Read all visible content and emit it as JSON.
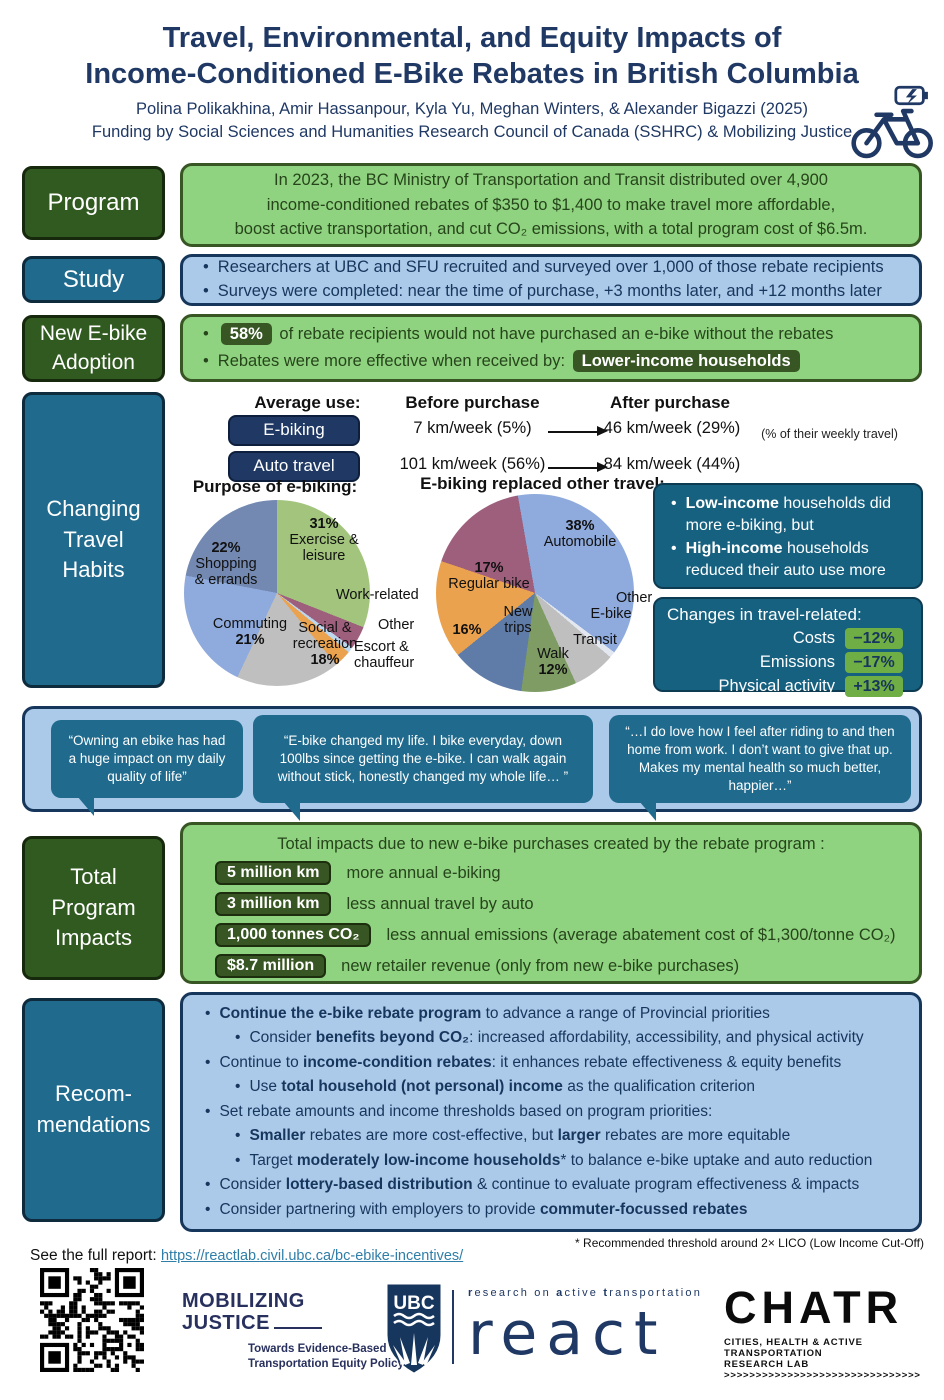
{
  "poster": {
    "title_line1": "Travel, Environmental, and Equity Impacts of",
    "title_line2": "Income-Conditioned E-Bike Rebates in British Columbia",
    "authors": "Polina Polikakhina, Amir Hassanpour, Kyla Yu, Meghan Winters, & Alexander Bigazzi (2025)",
    "funding": "Funding by Social Sciences and Humanities Research Council of Canada (SSHRC) & Mobilizing Justice"
  },
  "colors": {
    "navy": "#1F3864",
    "teal": "#1F6A8D",
    "teal_dark": "#176180",
    "green_dark": "#375623",
    "green_light": "#8FD280",
    "blue_light": "#ABC9E8",
    "badge_green": "#6FAE44"
  },
  "program": {
    "label": "Program",
    "lines": [
      "In 2023, the BC Ministry of Transportation and Transit distributed over 4,900",
      "income-conditioned rebates of $350 to $1,400 to make travel more affordable,",
      "boost active transportation, and cut CO₂ emissions, with a total program cost of $6.5m."
    ]
  },
  "study": {
    "label": "Study",
    "items": [
      {
        "lvl": 1,
        "seg": [
          {
            "t": "Researchers at UBC and SFU recruited and surveyed over 1,000 of those rebate recipients"
          }
        ]
      },
      {
        "lvl": 1,
        "seg": [
          {
            "t": "Surveys were completed: near the time of purchase, +3 months later, and +12 months later"
          }
        ]
      }
    ]
  },
  "adoption": {
    "label_line1": "New E-bike",
    "label_line2": "Adoption",
    "items": [
      {
        "lvl": 1,
        "seg": [
          {
            "t": "58%",
            "badge": true
          },
          {
            "t": " of rebate recipients would not have purchased an e-bike without the rebates"
          }
        ]
      },
      {
        "lvl": 1,
        "seg": [
          {
            "t": "Rebates were more effective when received by: "
          },
          {
            "t": "Lower-income households",
            "badge": true
          }
        ]
      }
    ]
  },
  "habits": {
    "label_line1": "Changing",
    "label_line2": "Travel",
    "label_line3": "Habits",
    "avg_use": {
      "col_mode": "Average use:",
      "col_before": "Before purchase",
      "col_after": "After purchase",
      "note": "(% of their weekly travel)",
      "rows": [
        {
          "mode": "E-biking",
          "before": "7 km/week  (5%)",
          "after": "46 km/week (29%)"
        },
        {
          "mode": "Auto travel",
          "before": "101 km/week (56%)",
          "after": "84 km/week (44%)"
        }
      ]
    },
    "findings": [
      {
        "lvl": 1,
        "seg": [
          {
            "t": "Low-income",
            "b": true
          },
          {
            "t": " households did more e-biking, but"
          }
        ]
      },
      {
        "lvl": 1,
        "seg": [
          {
            "t": "High-income",
            "b": true
          },
          {
            "t": " households reduced their auto use more"
          }
        ]
      }
    ],
    "changes": {
      "title": "Changes in travel-related:",
      "rows": [
        {
          "label": "Costs",
          "value": "−12%"
        },
        {
          "label": "Emissions",
          "value": "−17%"
        },
        {
          "label": "Physical activity",
          "value": "+13%"
        }
      ]
    }
  },
  "chart_data": [
    {
      "type": "pie",
      "title": "Purpose of e-biking:",
      "slices": [
        {
          "label": "Exercise & leisure",
          "value": 31,
          "color": "#A2C47C"
        },
        {
          "label": "Work-related",
          "value": 4,
          "color": "#9E5F7D"
        },
        {
          "label": "Other",
          "value": 1,
          "color": "#BDD7EE"
        },
        {
          "label": "Escort & chauffeur",
          "value": 3,
          "color": "#EBA24E"
        },
        {
          "label": "Social & recreation",
          "value": 18,
          "color": "#BFBFBF"
        },
        {
          "label": "Commuting",
          "value": 21,
          "color": "#8FAADC"
        },
        {
          "label": "Shopping & errands",
          "value": 22,
          "color": "#7389B2"
        }
      ],
      "annotations": [
        {
          "strong": "31%",
          "label": "Exercise &\nleisure"
        },
        {
          "strong": "22%",
          "label": "Shopping\n& errands"
        },
        {
          "label": "Commuting",
          "strong": "21%"
        },
        {
          "label": "Social &\nrecreation",
          "strong": "18%"
        },
        {
          "label": "Work-related"
        },
        {
          "label": "Other"
        },
        {
          "label": "Escort &\nchauffeur"
        }
      ]
    },
    {
      "type": "pie",
      "title": "E-biking replaced other travel:",
      "slices": [
        {
          "label": "Automobile",
          "value": 38,
          "color": "#8FAADC"
        },
        {
          "label": "Other",
          "value": 1,
          "color": "#E3E8F0"
        },
        {
          "label": "E-bike",
          "value": 7,
          "color": "#BFBFBF"
        },
        {
          "label": "Transit",
          "value": 9,
          "color": "#7E9C64"
        },
        {
          "label": "Walk",
          "value": 12,
          "color": "#5F7BA8"
        },
        {
          "label": "New trips",
          "value": 16,
          "color": "#EBA24E"
        },
        {
          "label": "Regular bike",
          "value": 17,
          "color": "#9E5F7D"
        }
      ],
      "annotations": [
        {
          "strong": "38%",
          "label": "Automobile"
        },
        {
          "strong": "17%",
          "label": "Regular bike"
        },
        {
          "label": "New\ntrips"
        },
        {
          "strong": "16%"
        },
        {
          "label": "Walk",
          "strong": "12%"
        },
        {
          "label": "Transit"
        },
        {
          "label": "E-bike"
        },
        {
          "label": "Other"
        }
      ]
    }
  ],
  "quotes": {
    "items": [
      "“Owning an ebike has had a huge impact on my daily quality of life”",
      "“E-bike changed my life. I bike everyday, down 100lbs since getting the e-bike. I can walk again without stick, honestly changed my whole life… ”",
      "“…I do love how I feel after riding to and then home from work. I don’t want to give that up. Makes my mental health so much better, happier…”"
    ]
  },
  "impacts": {
    "label_line1": "Total",
    "label_line2": "Program",
    "label_line3": "Impacts",
    "header": "Total impacts due to new e-bike purchases created by the rebate program :",
    "rows": [
      {
        "badge": "5 million km",
        "text": "more annual e-biking"
      },
      {
        "badge": "3 million km",
        "text": "less annual travel by auto"
      },
      {
        "badge": "1,000 tonnes CO₂",
        "text": "less annual emissions (average abatement cost of $1,300/tonne CO₂)"
      },
      {
        "badge": "$8.7 million",
        "text": "new retailer revenue (only from new e-bike purchases)"
      }
    ]
  },
  "recommendations": {
    "label_line1": "Recom-",
    "label_line2": "mendations",
    "items": [
      {
        "lvl": 1,
        "seg": [
          {
            "t": "Continue the e-bike rebate program",
            "b": true
          },
          {
            "t": " to advance a range of Provincial priorities"
          }
        ]
      },
      {
        "lvl": 2,
        "seg": [
          {
            "t": "Consider "
          },
          {
            "t": "benefits beyond CO₂",
            "b": true
          },
          {
            "t": ": increased affordability, accessibility, and physical activity"
          }
        ]
      },
      {
        "lvl": 1,
        "seg": [
          {
            "t": "Continue to "
          },
          {
            "t": "income-condition rebates",
            "b": true
          },
          {
            "t": ": it enhances rebate effectiveness & equity benefits"
          }
        ]
      },
      {
        "lvl": 2,
        "seg": [
          {
            "t": "Use "
          },
          {
            "t": "total household (not personal) income",
            "b": true
          },
          {
            "t": " as the qualification criterion"
          }
        ]
      },
      {
        "lvl": 1,
        "seg": [
          {
            "t": "Set rebate amounts and income thresholds based on program priorities:"
          }
        ]
      },
      {
        "lvl": 2,
        "seg": [
          {
            "t": "Smaller",
            "b": true
          },
          {
            "t": " rebates are more cost-effective, but "
          },
          {
            "t": "larger",
            "b": true
          },
          {
            "t": " rebates are more equitable"
          }
        ]
      },
      {
        "lvl": 2,
        "seg": [
          {
            "t": "Target "
          },
          {
            "t": "moderately low-income households",
            "b": true
          },
          {
            "t": "* to balance e-bike uptake and auto reduction"
          }
        ]
      },
      {
        "lvl": 1,
        "seg": [
          {
            "t": "Consider "
          },
          {
            "t": "lottery-based distribution",
            "b": true
          },
          {
            "t": " & continue to evaluate program effectiveness & impacts"
          }
        ]
      },
      {
        "lvl": 1,
        "seg": [
          {
            "t": "Consider partnering with employers to provide "
          },
          {
            "t": "commuter-focussed rebates",
            "b": true
          }
        ]
      }
    ],
    "footnote": "* Recommended threshold around 2× LICO (Low Income Cut-Off)"
  },
  "footer": {
    "report_label": "See the full report:",
    "report_url": "https://reactlab.civil.ubc.ca/bc-ebike-incentives/"
  },
  "logos": {
    "mobilizing_justice": {
      "line1": "MOBILIZING",
      "line2": "JUSTICE",
      "tagline1": "Towards Evidence-Based",
      "tagline2": "Transportation Equity Policy"
    },
    "ubc": {
      "text": "UBC"
    },
    "react": {
      "tag_seg": [
        {
          "t": "r",
          "b": true
        },
        {
          "t": "esearch on "
        },
        {
          "t": "a",
          "b": true
        },
        {
          "t": "ctive "
        },
        {
          "t": "t",
          "b": true
        },
        {
          "t": "ransportation"
        }
      ],
      "name": "react"
    },
    "chatr": {
      "name": "CHATR",
      "sub1": "CITIES, HEALTH & ACTIVE TRANSPORTATION",
      "sub2": "RESEARCH LAB >>>>>>>>>>>>>>>>>>>>>>>>>>>>>>>"
    }
  }
}
